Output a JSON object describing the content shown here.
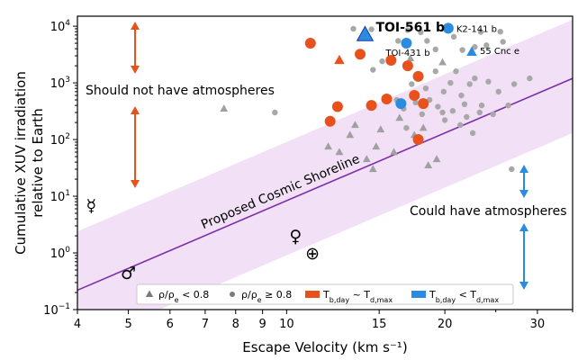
{
  "chart_data": {
    "type": "scatter",
    "xscale": "log",
    "yscale": "log",
    "xlim": [
      4,
      35
    ],
    "ylim": [
      0.1,
      15000
    ],
    "xlabel": "Escape Velocity (km s⁻¹)",
    "ylabel_lines": [
      "Cumulative XUV irradiation",
      "relative to Earth"
    ],
    "x_ticks": [
      4,
      5,
      6,
      7,
      8,
      9,
      10,
      15,
      20,
      30
    ],
    "y_ticks": [
      {
        "value": 0.1,
        "base": "10",
        "exp": "−1"
      },
      {
        "value": 1,
        "base": "10",
        "exp": "0"
      },
      {
        "value": 10,
        "base": "10",
        "exp": "1"
      },
      {
        "value": 100,
        "base": "10",
        "exp": "2"
      },
      {
        "value": 1000,
        "base": "10",
        "exp": "3"
      },
      {
        "value": 10000,
        "base": "10",
        "exp": "4"
      }
    ],
    "shoreline": {
      "label": "Proposed Cosmic Shoreline",
      "points": [
        [
          4,
          0.22
        ],
        [
          35,
          1200
        ]
      ],
      "band_low": [
        [
          4,
          0.024
        ],
        [
          35,
          130
        ]
      ],
      "band_high": [
        [
          4,
          2.4
        ],
        [
          35,
          13000
        ]
      ],
      "line_color": "#7b2fa8",
      "band_color": "#f0dcf5"
    },
    "annotations": {
      "should_not": "Should not have atmospheres",
      "could_have": "Could have atmospheres",
      "arrow_up_color": "#e8501c",
      "arrow_down_color": "#2a8be0"
    },
    "solar_system": [
      {
        "symbol": "☿",
        "name": "Mercury",
        "x": 4.25,
        "y": 7
      },
      {
        "symbol": "♂",
        "name": "Mars",
        "x": 5.0,
        "y": 0.45
      },
      {
        "symbol": "♀",
        "name": "Venus",
        "x": 10.4,
        "y": 2.0
      },
      {
        "symbol": "⊕",
        "name": "Earth",
        "x": 11.2,
        "y": 1.0
      }
    ],
    "series": [
      {
        "name": "ρ/ρe < 0.8",
        "marker": "triangle",
        "color": "#a0a0a0",
        "points": [
          [
            7.6,
            350
          ],
          [
            12.0,
            75
          ],
          [
            12.6,
            60
          ],
          [
            13.2,
            120
          ],
          [
            13.5,
            180
          ],
          [
            14.2,
            45
          ],
          [
            14.6,
            30
          ],
          [
            14.8,
            75
          ],
          [
            15.1,
            150
          ],
          [
            16.0,
            60
          ],
          [
            16.4,
            240
          ],
          [
            17.5,
            120
          ],
          [
            17.9,
            95
          ],
          [
            18.2,
            160
          ],
          [
            18.6,
            35
          ],
          [
            19.3,
            45
          ],
          [
            17.2,
            2700
          ],
          [
            19.8,
            2300
          ]
        ]
      },
      {
        "name": "ρ/ρe ≥ 0.8",
        "marker": "circle",
        "color": "#a8a8a8",
        "points": [
          [
            9.5,
            300
          ],
          [
            13.4,
            9000
          ],
          [
            14.5,
            8800
          ],
          [
            16.3,
            5500
          ],
          [
            17.0,
            8500
          ],
          [
            18.0,
            7800
          ],
          [
            18.5,
            5500
          ],
          [
            19.2,
            3900
          ],
          [
            20.4,
            9200
          ],
          [
            20.8,
            6500
          ],
          [
            21.6,
            3800
          ],
          [
            22.8,
            4300
          ],
          [
            23.4,
            7900
          ],
          [
            24.0,
            4600
          ],
          [
            25.5,
            8000
          ],
          [
            25.8,
            5300
          ],
          [
            14.6,
            1700
          ],
          [
            15.2,
            2400
          ],
          [
            16.2,
            500
          ],
          [
            16.7,
            350
          ],
          [
            17.3,
            950
          ],
          [
            18.4,
            800
          ],
          [
            19.2,
            1600
          ],
          [
            19.8,
            300
          ],
          [
            20.5,
            1000
          ],
          [
            21.0,
            1600
          ],
          [
            21.5,
            600
          ],
          [
            22.3,
            950
          ],
          [
            22.8,
            1200
          ],
          [
            23.5,
            400
          ],
          [
            24.2,
            1050
          ],
          [
            24.7,
            280
          ],
          [
            25.3,
            700
          ],
          [
            26.4,
            400
          ],
          [
            27.1,
            950
          ],
          [
            29.0,
            1200
          ],
          [
            16.9,
            160
          ],
          [
            17.6,
            450
          ],
          [
            18.1,
            280
          ],
          [
            18.7,
            500
          ],
          [
            19.4,
            380
          ],
          [
            20.0,
            220
          ],
          [
            20.7,
            320
          ],
          [
            21.4,
            180
          ],
          [
            22.0,
            250
          ],
          [
            22.6,
            130
          ],
          [
            23.3,
            300
          ],
          [
            26.8,
            30
          ],
          [
            19.9,
            700
          ],
          [
            21.8,
            420
          ]
        ]
      },
      {
        "name": "T_b,day ~ T_d,max",
        "marker": "circle",
        "color": "#e8501c",
        "points": [
          [
            11.1,
            5000
          ],
          [
            13.8,
            3200
          ],
          [
            15.8,
            2500
          ],
          [
            17.0,
            2000
          ],
          [
            17.8,
            1300
          ],
          [
            15.5,
            520
          ],
          [
            14.5,
            400
          ],
          [
            12.5,
            380
          ],
          [
            12.1,
            210
          ],
          [
            17.5,
            600
          ],
          [
            18.2,
            430
          ],
          [
            17.8,
            100
          ]
        ]
      },
      {
        "name": "T_b,day ~ T_d,max (triangle)",
        "marker": "triangle",
        "color": "#e8501c",
        "points": [
          [
            12.6,
            2500
          ]
        ]
      },
      {
        "name": "T_b,day < T_d,max",
        "marker": "circle",
        "color": "#2a8be0",
        "points": [
          [
            16.9,
            5000
          ],
          [
            20.3,
            9200
          ],
          [
            16.5,
            430
          ]
        ]
      },
      {
        "name": "T_b,day < T_d,max (triangle)",
        "marker": "triangle",
        "color": "#2a8be0",
        "points": [
          [
            14.1,
            7000
          ],
          [
            22.5,
            3500
          ]
        ]
      }
    ],
    "point_labels": [
      {
        "text": "TOI-561 b",
        "x": 14.1,
        "y": 7000,
        "bold": true
      },
      {
        "text": "K2-141 b",
        "x": 20.3,
        "y": 9200,
        "bold": false
      },
      {
        "text": "TOI-431 b",
        "x": 16.9,
        "y": 5000,
        "bold": false
      },
      {
        "text": "55 Cnc e",
        "x": 22.5,
        "y": 3500,
        "bold": false
      }
    ],
    "legend": {
      "position": "bottom-right",
      "items": [
        {
          "label_html": "ρ/ρ",
          "sub": "e",
          "rest": " < 0.8",
          "marker": "triangle",
          "color": "#7a7a7a"
        },
        {
          "label_html": "ρ/ρ",
          "sub": "e",
          "rest": " ≥ 0.8",
          "marker": "circle",
          "color": "#7a7a7a"
        },
        {
          "label_html": "T",
          "sub": "b,day",
          "rest": " ~ T",
          "sub2": "d,max",
          "marker": "rect",
          "color": "#e8501c"
        },
        {
          "label_html": "T",
          "sub": "b,day",
          "rest": " < T",
          "sub2": "d,max",
          "marker": "rect",
          "color": "#2a8be0"
        }
      ]
    }
  }
}
